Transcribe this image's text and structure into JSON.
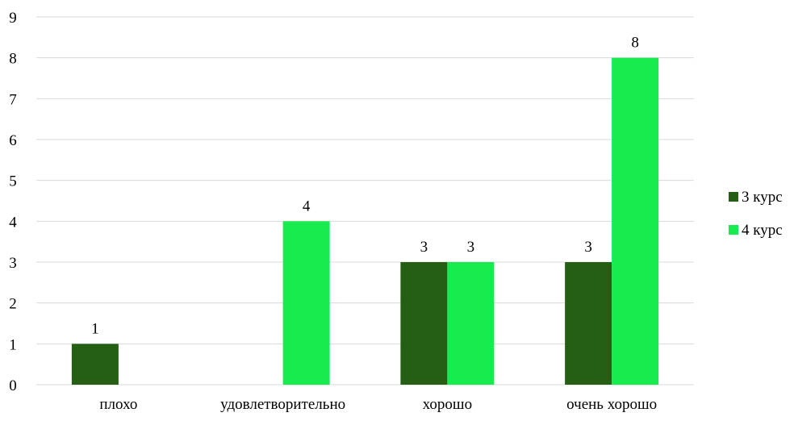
{
  "chart_data": {
    "type": "bar",
    "title": "",
    "xlabel": "",
    "ylabel": "",
    "categories": [
      "плохо",
      "удовлетворительно",
      "хорошо",
      "очень хорошо"
    ],
    "series": [
      {
        "name": "3 курс",
        "color": "#245f13",
        "values": [
          1,
          null,
          3,
          3
        ]
      },
      {
        "name": "4 курс",
        "color": "#16eb4f",
        "values": [
          null,
          4,
          3,
          8
        ]
      }
    ],
    "ylim": [
      0,
      9
    ],
    "yticks": [
      0,
      1,
      2,
      3,
      4,
      5,
      6,
      7,
      8,
      9
    ],
    "grid": true,
    "legend_position": "right",
    "gridline_color": "#d9d9d9"
  }
}
